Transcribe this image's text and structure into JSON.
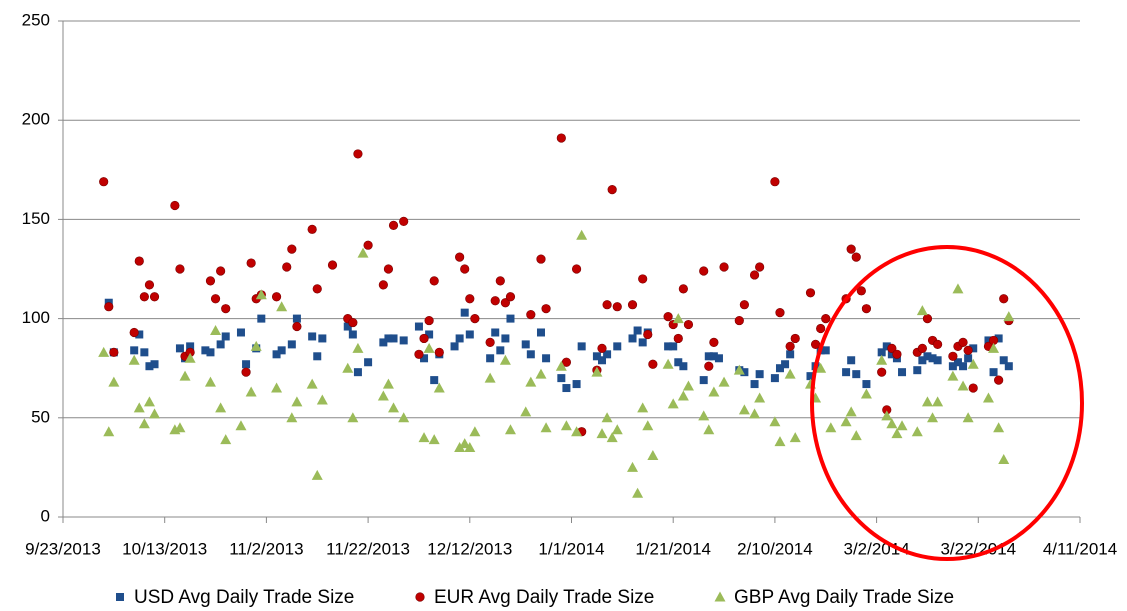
{
  "chart_data": {
    "type": "scatter",
    "xlim": [
      "9/23/2013",
      "4/11/2014"
    ],
    "xticks": [
      "9/23/2013",
      "10/13/2013",
      "11/2/2013",
      "11/22/2013",
      "12/12/2013",
      "1/1/2014",
      "1/21/2014",
      "2/10/2014",
      "3/2/2014",
      "3/22/2014",
      "4/11/2014"
    ],
    "ylim": [
      0,
      250
    ],
    "yticks": [
      0,
      50,
      100,
      150,
      200,
      250
    ],
    "grid": true,
    "series": [
      {
        "name": "USD Avg Daily Trade Size",
        "color": "#1f4e8c",
        "marker": "square",
        "x": [
          "10/2/2013",
          "10/3/2013",
          "10/7/2013",
          "10/8/2013",
          "10/9/2013",
          "10/10/2013",
          "10/11/2013",
          "10/16/2013",
          "10/17/2013",
          "10/18/2013",
          "10/21/2013",
          "10/22/2013",
          "10/24/2013",
          "10/25/2013",
          "10/28/2013",
          "10/29/2013",
          "10/31/2013",
          "11/1/2013",
          "11/4/2013",
          "11/5/2013",
          "11/7/2013",
          "11/8/2013",
          "11/11/2013",
          "11/12/2013",
          "11/13/2013",
          "11/18/2013",
          "11/19/2013",
          "11/20/2013",
          "11/22/2013",
          "11/25/2013",
          "11/26/2013",
          "11/27/2013",
          "11/29/2013",
          "12/2/2013",
          "12/3/2013",
          "12/4/2013",
          "12/5/2013",
          "12/6/2013",
          "12/9/2013",
          "12/10/2013",
          "12/11/2013",
          "12/12/2013",
          "12/16/2013",
          "12/17/2013",
          "12/18/2013",
          "12/19/2013",
          "12/20/2013",
          "12/23/2013",
          "12/24/2013",
          "12/26/2013",
          "12/27/2013",
          "12/30/2013",
          "12/31/2013",
          "1/2/2014",
          "1/3/2014",
          "1/6/2014",
          "1/7/2014",
          "1/8/2014",
          "1/10/2014",
          "1/13/2014",
          "1/14/2014",
          "1/15/2014",
          "1/16/2014",
          "1/20/2014",
          "1/21/2014",
          "1/22/2014",
          "1/23/2014",
          "1/27/2014",
          "1/28/2014",
          "1/29/2014",
          "1/30/2014",
          "2/3/2014",
          "2/4/2014",
          "2/6/2014",
          "2/7/2014",
          "2/10/2014",
          "2/11/2014",
          "2/12/2014",
          "2/13/2014",
          "2/17/2014",
          "2/18/2014",
          "2/19/2014",
          "2/20/2014",
          "2/24/2014",
          "2/25/2014",
          "2/26/2014",
          "2/28/2014",
          "3/3/2014",
          "3/4/2014",
          "3/5/2014",
          "3/6/2014",
          "3/7/2014",
          "3/10/2014",
          "3/11/2014",
          "3/12/2014",
          "3/13/2014",
          "3/14/2014",
          "3/17/2014",
          "3/18/2014",
          "3/19/2014",
          "3/20/2014",
          "3/21/2014",
          "3/24/2014",
          "3/25/2014",
          "3/26/2014",
          "3/27/2014",
          "3/28/2014"
        ],
        "values": [
          108,
          83,
          84,
          92,
          83,
          76,
          77,
          85,
          80,
          86,
          84,
          83,
          87,
          91,
          93,
          77,
          85,
          100,
          82,
          84,
          87,
          100,
          91,
          81,
          90,
          96,
          92,
          73,
          78,
          88,
          90,
          90,
          89,
          96,
          80,
          92,
          69,
          82,
          86,
          90,
          103,
          92,
          80,
          93,
          84,
          90,
          100,
          87,
          82,
          93,
          80,
          70,
          65,
          67,
          86,
          81,
          79,
          82,
          86,
          90,
          94,
          88,
          93,
          86,
          86,
          78,
          76,
          69,
          81,
          81,
          80,
          74,
          73,
          67,
          72,
          70,
          75,
          77,
          82,
          71,
          76,
          84,
          84,
          73,
          79,
          72,
          67,
          83,
          86,
          82,
          80,
          73,
          74,
          79,
          81,
          80,
          79,
          76,
          78,
          76,
          80,
          85,
          89,
          73,
          90,
          79,
          76
        ]
      },
      {
        "name": "EUR Avg Daily Trade Size",
        "color": "#c00000",
        "marker": "circle",
        "x": [
          "10/1/2013",
          "10/2/2013",
          "10/3/2013",
          "10/7/2013",
          "10/8/2013",
          "10/9/2013",
          "10/10/2013",
          "10/11/2013",
          "10/15/2013",
          "10/16/2013",
          "10/17/2013",
          "10/18/2013",
          "10/22/2013",
          "10/23/2013",
          "10/24/2013",
          "10/25/2013",
          "10/29/2013",
          "10/30/2013",
          "10/31/2013",
          "11/1/2013",
          "11/4/2013",
          "11/6/2013",
          "11/7/2013",
          "11/8/2013",
          "11/11/2013",
          "11/12/2013",
          "11/15/2013",
          "11/18/2013",
          "11/19/2013",
          "11/20/2013",
          "11/22/2013",
          "11/25/2013",
          "11/26/2013",
          "11/27/2013",
          "11/29/2013",
          "12/2/2013",
          "12/3/2013",
          "12/4/2013",
          "12/5/2013",
          "12/6/2013",
          "12/10/2013",
          "12/11/2013",
          "12/12/2013",
          "12/13/2013",
          "12/16/2013",
          "12/17/2013",
          "12/18/2013",
          "12/19/2013",
          "12/20/2013",
          "12/24/2013",
          "12/26/2013",
          "12/27/2013",
          "12/30/2013",
          "12/31/2013",
          "1/2/2014",
          "1/3/2014",
          "1/6/2014",
          "1/7/2014",
          "1/8/2014",
          "1/9/2014",
          "1/10/2014",
          "1/13/2014",
          "1/15/2014",
          "1/16/2014",
          "1/17/2014",
          "1/20/2014",
          "1/21/2014",
          "1/22/2014",
          "1/23/2014",
          "1/24/2014",
          "1/27/2014",
          "1/28/2014",
          "1/29/2014",
          "1/31/2014",
          "2/3/2014",
          "2/4/2014",
          "2/6/2014",
          "2/7/2014",
          "2/10/2014",
          "2/11/2014",
          "2/13/2014",
          "2/14/2014",
          "2/17/2014",
          "2/18/2014",
          "2/19/2014",
          "2/20/2014",
          "2/24/2014",
          "2/25/2014",
          "2/26/2014",
          "2/27/2014",
          "2/28/2014",
          "3/3/2014",
          "3/4/2014",
          "3/5/2014",
          "3/6/2014",
          "3/10/2014",
          "3/11/2014",
          "3/12/2014",
          "3/13/2014",
          "3/14/2014",
          "3/17/2014",
          "3/18/2014",
          "3/19/2014",
          "3/20/2014",
          "3/21/2014",
          "3/24/2014",
          "3/25/2014",
          "3/26/2014",
          "3/27/2014",
          "3/28/2014"
        ],
        "values": [
          169,
          106,
          83,
          93,
          129,
          111,
          117,
          111,
          157,
          125,
          81,
          83,
          119,
          110,
          124,
          105,
          73,
          128,
          110,
          112,
          111,
          126,
          135,
          96,
          145,
          115,
          127,
          100,
          98,
          183,
          137,
          117,
          125,
          147,
          149,
          82,
          90,
          99,
          119,
          83,
          131,
          125,
          110,
          100,
          88,
          109,
          119,
          108,
          111,
          102,
          130,
          105,
          191,
          78,
          125,
          43,
          74,
          85,
          107,
          165,
          106,
          107,
          120,
          92,
          77,
          101,
          97,
          90,
          115,
          97,
          124,
          76,
          88,
          126,
          99,
          107,
          122,
          126,
          169,
          103,
          86,
          90,
          113,
          87,
          95,
          100,
          110,
          135,
          131,
          114,
          105,
          73,
          54,
          85,
          82,
          83,
          85,
          100,
          89,
          87,
          81,
          86,
          88,
          84,
          65,
          86,
          89,
          69,
          110,
          99
        ]
      },
      {
        "name": "GBP Avg Daily Trade Size",
        "color": "#9bbb59",
        "marker": "triangle",
        "x": [
          "10/1/2013",
          "10/2/2013",
          "10/3/2013",
          "10/7/2013",
          "10/8/2013",
          "10/9/2013",
          "10/10/2013",
          "10/11/2013",
          "10/15/2013",
          "10/16/2013",
          "10/17/2013",
          "10/18/2013",
          "10/22/2013",
          "10/23/2013",
          "10/24/2013",
          "10/25/2013",
          "10/28/2013",
          "10/30/2013",
          "10/31/2013",
          "11/1/2013",
          "11/4/2013",
          "11/5/2013",
          "11/7/2013",
          "11/8/2013",
          "11/11/2013",
          "11/12/2013",
          "11/13/2013",
          "11/18/2013",
          "11/19/2013",
          "11/20/2013",
          "11/21/2013",
          "11/25/2013",
          "11/26/2013",
          "11/27/2013",
          "11/29/2013",
          "12/3/2013",
          "12/4/2013",
          "12/5/2013",
          "12/6/2013",
          "12/10/2013",
          "12/11/2013",
          "12/12/2013",
          "12/13/2013",
          "12/16/2013",
          "12/19/2013",
          "12/20/2013",
          "12/23/2013",
          "12/24/2013",
          "12/26/2013",
          "12/27/2013",
          "12/30/2013",
          "12/31/2013",
          "1/2/2014",
          "1/3/2014",
          "1/6/2014",
          "1/7/2014",
          "1/8/2014",
          "1/9/2014",
          "1/10/2014",
          "1/13/2014",
          "1/14/2014",
          "1/15/2014",
          "1/16/2014",
          "1/17/2014",
          "1/20/2014",
          "1/21/2014",
          "1/22/2014",
          "1/23/2014",
          "1/24/2014",
          "1/27/2014",
          "1/28/2014",
          "1/29/2014",
          "1/31/2014",
          "2/3/2014",
          "2/4/2014",
          "2/6/2014",
          "2/7/2014",
          "2/10/2014",
          "2/11/2014",
          "2/13/2014",
          "2/14/2014",
          "2/17/2014",
          "2/18/2014",
          "2/19/2014",
          "2/21/2014",
          "2/24/2014",
          "2/25/2014",
          "2/26/2014",
          "2/28/2014",
          "3/3/2014",
          "3/4/2014",
          "3/5/2014",
          "3/6/2014",
          "3/7/2014",
          "3/10/2014",
          "3/11/2014",
          "3/12/2014",
          "3/13/2014",
          "3/14/2014",
          "3/17/2014",
          "3/18/2014",
          "3/19/2014",
          "3/20/2014",
          "3/21/2014",
          "3/24/2014",
          "3/25/2014",
          "3/26/2014",
          "3/27/2014",
          "3/28/2014"
        ],
        "values": [
          83,
          43,
          68,
          79,
          55,
          47,
          58,
          52,
          44,
          45,
          71,
          80,
          68,
          94,
          55,
          39,
          46,
          63,
          86,
          112,
          65,
          106,
          50,
          58,
          67,
          21,
          59,
          75,
          50,
          85,
          133,
          61,
          67,
          55,
          50,
          40,
          85,
          39,
          65,
          35,
          37,
          35,
          43,
          70,
          79,
          44,
          53,
          68,
          72,
          45,
          76,
          46,
          43,
          142,
          73,
          42,
          50,
          40,
          44,
          25,
          12,
          55,
          46,
          31,
          77,
          57,
          100,
          61,
          66,
          51,
          44,
          63,
          68,
          74,
          54,
          52,
          60,
          48,
          38,
          72,
          40,
          67,
          60,
          75,
          45,
          48,
          53,
          41,
          62,
          79,
          51,
          47,
          42,
          46,
          43,
          104,
          58,
          50,
          58,
          71,
          115,
          66,
          50,
          77,
          60,
          85,
          45,
          29,
          101
        ]
      }
    ]
  }
}
